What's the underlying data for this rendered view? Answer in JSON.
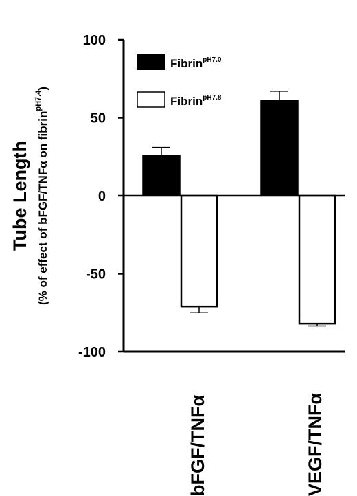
{
  "chart_data": {
    "type": "bar",
    "categories": [
      "bFGF/TNFα",
      "VEGF/TNFα"
    ],
    "series": [
      {
        "name": "Fibrin",
        "name_sup": "pH7.0",
        "fill": "#000000",
        "values": [
          26,
          61
        ],
        "errors": [
          5,
          6
        ]
      },
      {
        "name": "Fibrin",
        "name_sup": "pH7.8",
        "fill": "#ffffff",
        "values": [
          -71,
          -82
        ],
        "errors": [
          4,
          1.5
        ]
      }
    ],
    "ylabel": "Tube Length",
    "ylabel_sub": "(% of effect of bFGF/TNFα on fibrin",
    "ylabel_sub_sup": "pH7.4",
    "ylabel_sub_end": ")",
    "ylim": [
      -100,
      100
    ],
    "yticks": [
      100,
      50,
      0,
      -50,
      -100
    ],
    "ytick_labels": [
      "100",
      "50",
      "0",
      "-50",
      "-100"
    ],
    "grid": false,
    "legend_position": "top-left"
  }
}
